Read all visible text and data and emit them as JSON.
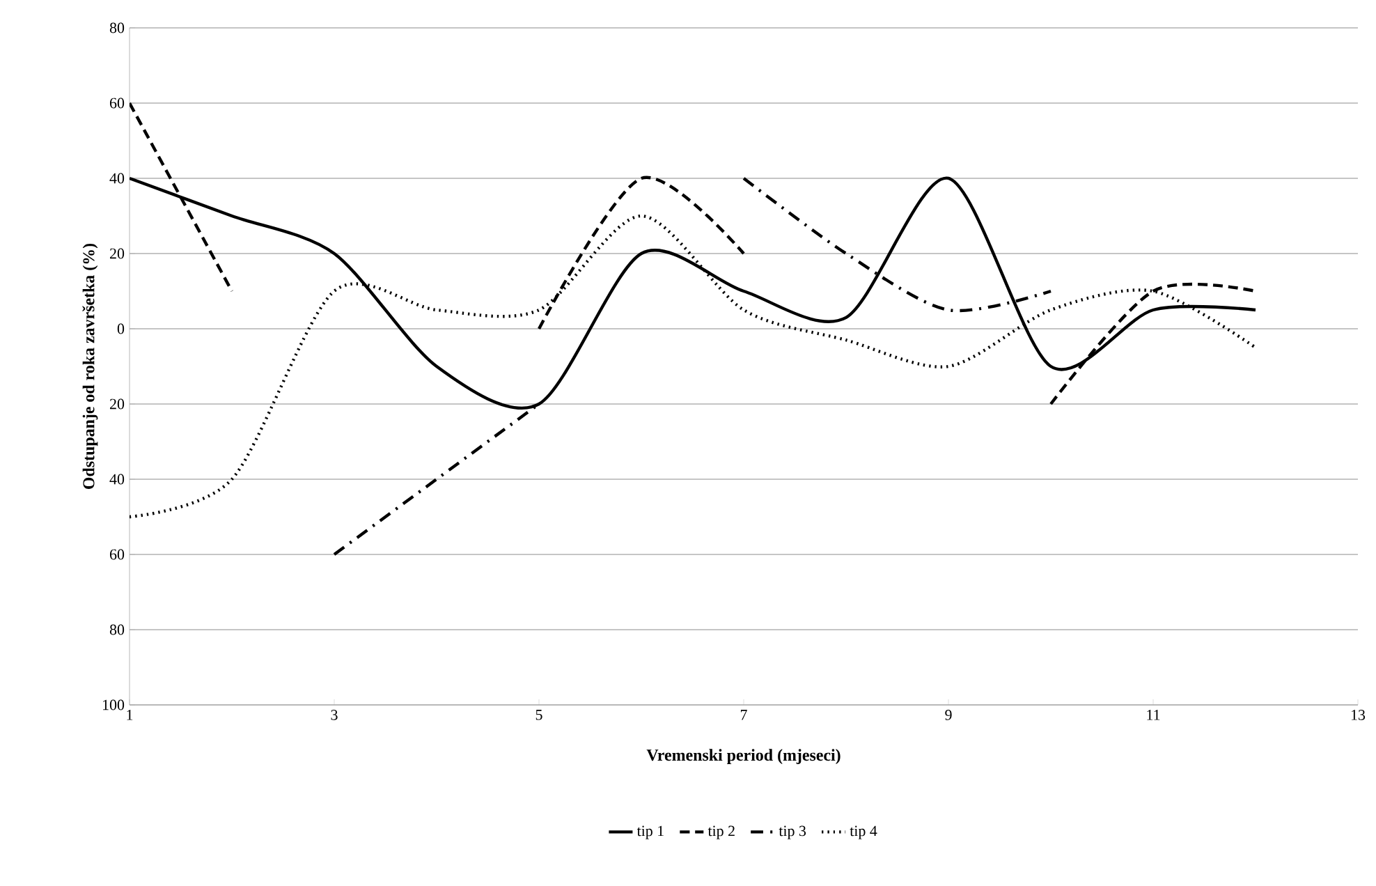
{
  "chart_data": {
    "type": "line",
    "xlabel": "Vremenski period (mjeseci)",
    "ylabel": "Odstupanje od roka završetka (%)",
    "x": [
      1,
      2,
      3,
      4,
      5,
      6,
      7,
      8,
      9,
      10,
      11,
      12
    ],
    "series": [
      {
        "name": "tip 1",
        "color": "#000000",
        "line_style": "solid",
        "values": [
          40,
          30,
          20,
          -10,
          -20,
          20,
          10,
          3,
          40,
          -10,
          5,
          5
        ]
      },
      {
        "name": "tip 2",
        "color": "#000000",
        "line_style": "dashed",
        "values": [
          60,
          10,
          null,
          null,
          0,
          40,
          20,
          null,
          null,
          -20,
          10,
          10
        ]
      },
      {
        "name": "tip 3",
        "color": "#000000",
        "line_style": "dashdot",
        "values": [
          null,
          null,
          -60,
          -40,
          -20,
          null,
          40,
          20,
          5,
          10,
          null,
          null
        ]
      },
      {
        "name": "tip 4",
        "color": "#000000",
        "line_style": "dotted",
        "values": [
          -50,
          -40,
          10,
          5,
          5,
          30,
          5,
          -3,
          -10,
          5,
          10,
          -5
        ]
      }
    ],
    "xlim": [
      1,
      13
    ],
    "xticks": [
      1,
      3,
      5,
      7,
      9,
      11,
      13
    ],
    "ylim": [
      -100,
      80
    ],
    "yticks": [
      {
        "value": -100,
        "label": "100"
      },
      {
        "value": -80,
        "label": "80"
      },
      {
        "value": -60,
        "label": "60"
      },
      {
        "value": -40,
        "label": "40"
      },
      {
        "value": -20,
        "label": "20"
      },
      0,
      20,
      40,
      60,
      80
    ],
    "grid": "y",
    "legend": "bottom",
    "marker": "none"
  }
}
